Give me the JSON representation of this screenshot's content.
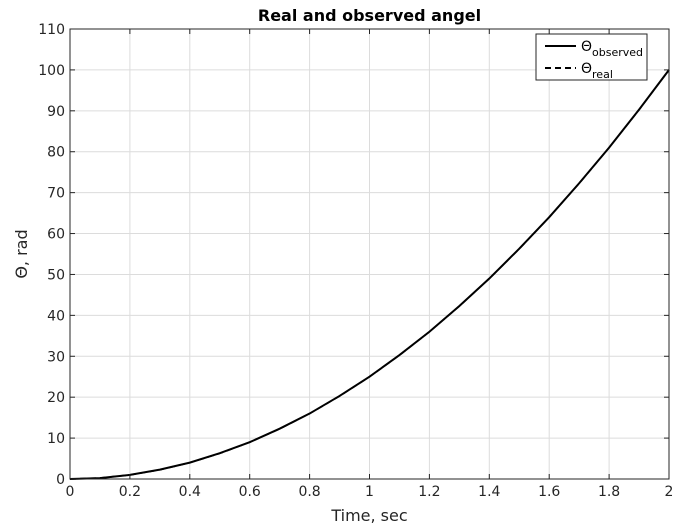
{
  "chart_data": {
    "type": "line",
    "title": "Real and observed angel",
    "xlabel": "Time, sec",
    "ylabel": "Θ, rad",
    "xlim": [
      0,
      2
    ],
    "ylim": [
      0,
      110
    ],
    "xticks": [
      0,
      0.2,
      0.4,
      0.6,
      0.8,
      1,
      1.2,
      1.4,
      1.6,
      1.8,
      2
    ],
    "xtick_labels": [
      "0",
      "0.2",
      "0.4",
      "0.6",
      "0.8",
      "1",
      "1.2",
      "1.4",
      "1.6",
      "1.8",
      "2"
    ],
    "yticks": [
      0,
      10,
      20,
      30,
      40,
      50,
      60,
      70,
      80,
      90,
      100,
      110
    ],
    "ytick_labels": [
      "0",
      "10",
      "20",
      "30",
      "40",
      "50",
      "60",
      "70",
      "80",
      "90",
      "100",
      "110"
    ],
    "grid": true,
    "legend_position": "top-right",
    "legend": [
      {
        "symbol": "Θ",
        "subscript": "observed",
        "style": "solid"
      },
      {
        "symbol": "Θ",
        "subscript": "real",
        "style": "dashed"
      }
    ],
    "series": [
      {
        "name": "Θobserved",
        "style": "solid",
        "color": "#000000",
        "x": [
          0,
          0.1,
          0.15,
          0.2,
          0.3,
          0.4,
          0.5,
          0.6,
          0.7,
          0.8,
          0.9,
          1.0,
          1.1,
          1.2,
          1.3,
          1.4,
          1.5,
          1.6,
          1.7,
          1.8,
          1.9,
          2.0
        ],
        "values": [
          0,
          0.2,
          0.6,
          1.0,
          2.3,
          4.0,
          6.3,
          9.0,
          12.3,
          16.0,
          20.3,
          25.0,
          30.3,
          36.0,
          42.3,
          49.0,
          56.3,
          64.0,
          72.3,
          81.0,
          90.3,
          100.0
        ]
      },
      {
        "name": "Θreal",
        "style": "dashed",
        "color": "#000000",
        "x": [
          0,
          0.1,
          0.2,
          0.3,
          0.4,
          0.5,
          0.6,
          0.7,
          0.8,
          0.9,
          1.0,
          1.1,
          1.2,
          1.3,
          1.4,
          1.5,
          1.6,
          1.7,
          1.8,
          1.9,
          2.0
        ],
        "values": [
          0,
          0.25,
          1.0,
          2.25,
          4.0,
          6.25,
          9.0,
          12.25,
          16.0,
          20.25,
          25.0,
          30.25,
          36.0,
          42.25,
          49.0,
          56.25,
          64.0,
          72.25,
          81.0,
          90.25,
          100.0
        ]
      }
    ],
    "colors": {
      "grid": "#dcdcdc",
      "axes": "#262626",
      "line": "#000000"
    }
  }
}
